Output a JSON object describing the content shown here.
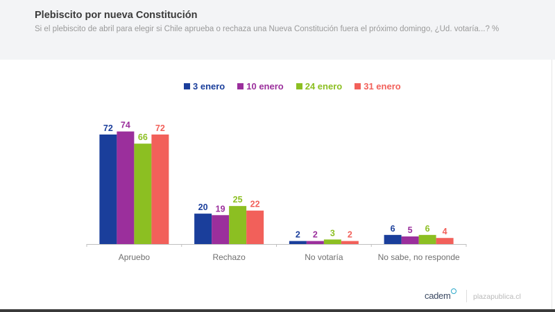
{
  "header": {
    "title": "Plebiscito por nueva Constitución",
    "subtitle": "Si el plebiscito de abril para elegir si Chile aprueba o rechaza una Nueva Constitución fuera el próximo domingo, ¿Ud. votaría...? %"
  },
  "footer": {
    "logo": "cadem",
    "site": "plazapublica.cl"
  },
  "chart_data": {
    "type": "bar",
    "title": "Plebiscito por nueva Constitución",
    "subtitle": "Si el plebiscito de abril para elegir si Chile aprueba o rechaza una Nueva Constitución fuera el próximo domingo, ¿Ud. votaría...? %",
    "xlabel": "",
    "ylabel": "",
    "ylim": [
      0,
      80
    ],
    "grid": false,
    "legend_position": "top-center",
    "categories": [
      "Apruebo",
      "Rechazo",
      "No votaría",
      "No sabe, no responde"
    ],
    "series": [
      {
        "name": "3 enero",
        "color": "#1a3e9b",
        "values": [
          72,
          20,
          2,
          6
        ]
      },
      {
        "name": "10 enero",
        "color": "#9b2f9c",
        "values": [
          74,
          19,
          2,
          5
        ]
      },
      {
        "name": "24 enero",
        "color": "#8cbf22",
        "values": [
          66,
          25,
          3,
          6
        ]
      },
      {
        "name": "31 enero",
        "color": "#f2605a",
        "values": [
          72,
          22,
          2,
          4
        ]
      }
    ]
  }
}
